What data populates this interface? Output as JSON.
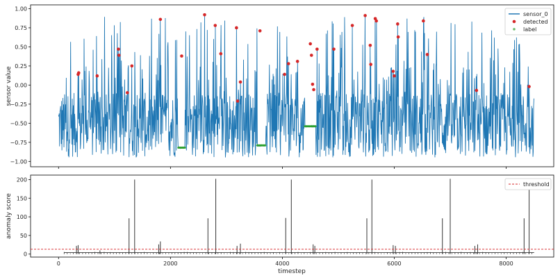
{
  "chart_data": [
    {
      "type": "line",
      "ylabel": "sensor value",
      "xlim": [
        -500,
        8850
      ],
      "ylim": [
        -1.07,
        1.05
      ],
      "y_ticks": [
        1.0,
        0.75,
        0.5,
        0.25,
        0.0,
        -0.25,
        -0.5,
        -0.75,
        -1.0
      ],
      "y_tick_labels": [
        "1.00",
        "0.75",
        "0.50",
        "0.25",
        "0.00",
        "−0.25",
        "−0.50",
        "−0.75",
        "−1.00"
      ],
      "legend_position": "top-right",
      "series": [
        {
          "name": "sensor_0",
          "kind": "line",
          "color": "#1f77b4",
          "x_range": [
            0,
            8500
          ],
          "baseline_range": [
            -0.95,
            -0.1
          ],
          "peak_max": 0.93
        },
        {
          "name": "detected",
          "kind": "scatter",
          "color": "#d62728",
          "points": [
            [
              350,
              0.14
            ],
            [
              360,
              0.16
            ],
            [
              690,
              0.12
            ],
            [
              1070,
              0.47
            ],
            [
              1080,
              0.39
            ],
            [
              1230,
              -0.1
            ],
            [
              1310,
              0.25
            ],
            [
              1820,
              0.86
            ],
            [
              2200,
              0.38
            ],
            [
              2610,
              0.92
            ],
            [
              2800,
              0.78
            ],
            [
              2900,
              0.41
            ],
            [
              3180,
              0.75
            ],
            [
              3200,
              -0.21
            ],
            [
              3250,
              0.04
            ],
            [
              3600,
              0.71
            ],
            [
              4040,
              0.14
            ],
            [
              4110,
              0.28
            ],
            [
              4270,
              0.31
            ],
            [
              4500,
              0.54
            ],
            [
              4520,
              0.39
            ],
            [
              4540,
              0.01
            ],
            [
              4560,
              -0.06
            ],
            [
              4620,
              0.47
            ],
            [
              4920,
              0.47
            ],
            [
              5250,
              0.78
            ],
            [
              5480,
              0.91
            ],
            [
              5570,
              0.52
            ],
            [
              5580,
              0.27
            ],
            [
              5660,
              0.87
            ],
            [
              5680,
              0.84
            ],
            [
              5980,
              0.18
            ],
            [
              6000,
              0.12
            ],
            [
              6060,
              0.8
            ],
            [
              6070,
              0.63
            ],
            [
              6520,
              0.84
            ],
            [
              6590,
              0.4
            ],
            [
              7470,
              -0.07
            ],
            [
              8410,
              -0.02
            ]
          ]
        },
        {
          "name": "label",
          "kind": "scatter",
          "color": "#2ca02c",
          "segments": [
            [
              2140,
              2260,
              -0.82
            ],
            [
              3550,
              3700,
              -0.79
            ],
            [
              4400,
              4600,
              -0.54
            ]
          ]
        }
      ]
    },
    {
      "type": "bar",
      "xlabel": "timestep",
      "ylabel": "anomaly score",
      "xlim": [
        -500,
        8850
      ],
      "ylim": [
        -8,
        212
      ],
      "x_ticks": [
        0,
        2000,
        4000,
        6000,
        8000
      ],
      "x_tick_labels": [
        "0",
        "2000",
        "4000",
        "6000",
        "8000"
      ],
      "y_ticks": [
        0,
        50,
        100,
        150,
        200
      ],
      "y_tick_labels": [
        "0",
        "50",
        "100",
        "150",
        "200"
      ],
      "legend_position": "top-right",
      "threshold": {
        "name": "threshold",
        "value": 13,
        "color": "#d62728"
      },
      "bar_color": "#333333",
      "bar_x_range": [
        100,
        8500
      ],
      "background_level": 4,
      "peaks": [
        [
          320,
          22
        ],
        [
          350,
          24
        ],
        [
          740,
          10
        ],
        [
          1260,
          96
        ],
        [
          1360,
          200
        ],
        [
          1790,
          26
        ],
        [
          1820,
          34
        ],
        [
          2670,
          96
        ],
        [
          2810,
          202
        ],
        [
          3190,
          22
        ],
        [
          3250,
          28
        ],
        [
          4060,
          97
        ],
        [
          4160,
          200
        ],
        [
          4550,
          26
        ],
        [
          4580,
          22
        ],
        [
          5510,
          96
        ],
        [
          5600,
          200
        ],
        [
          5980,
          24
        ],
        [
          6020,
          22
        ],
        [
          6860,
          96
        ],
        [
          7000,
          202
        ],
        [
          7440,
          22
        ],
        [
          7490,
          26
        ],
        [
          8320,
          96
        ],
        [
          8410,
          200
        ]
      ]
    }
  ]
}
